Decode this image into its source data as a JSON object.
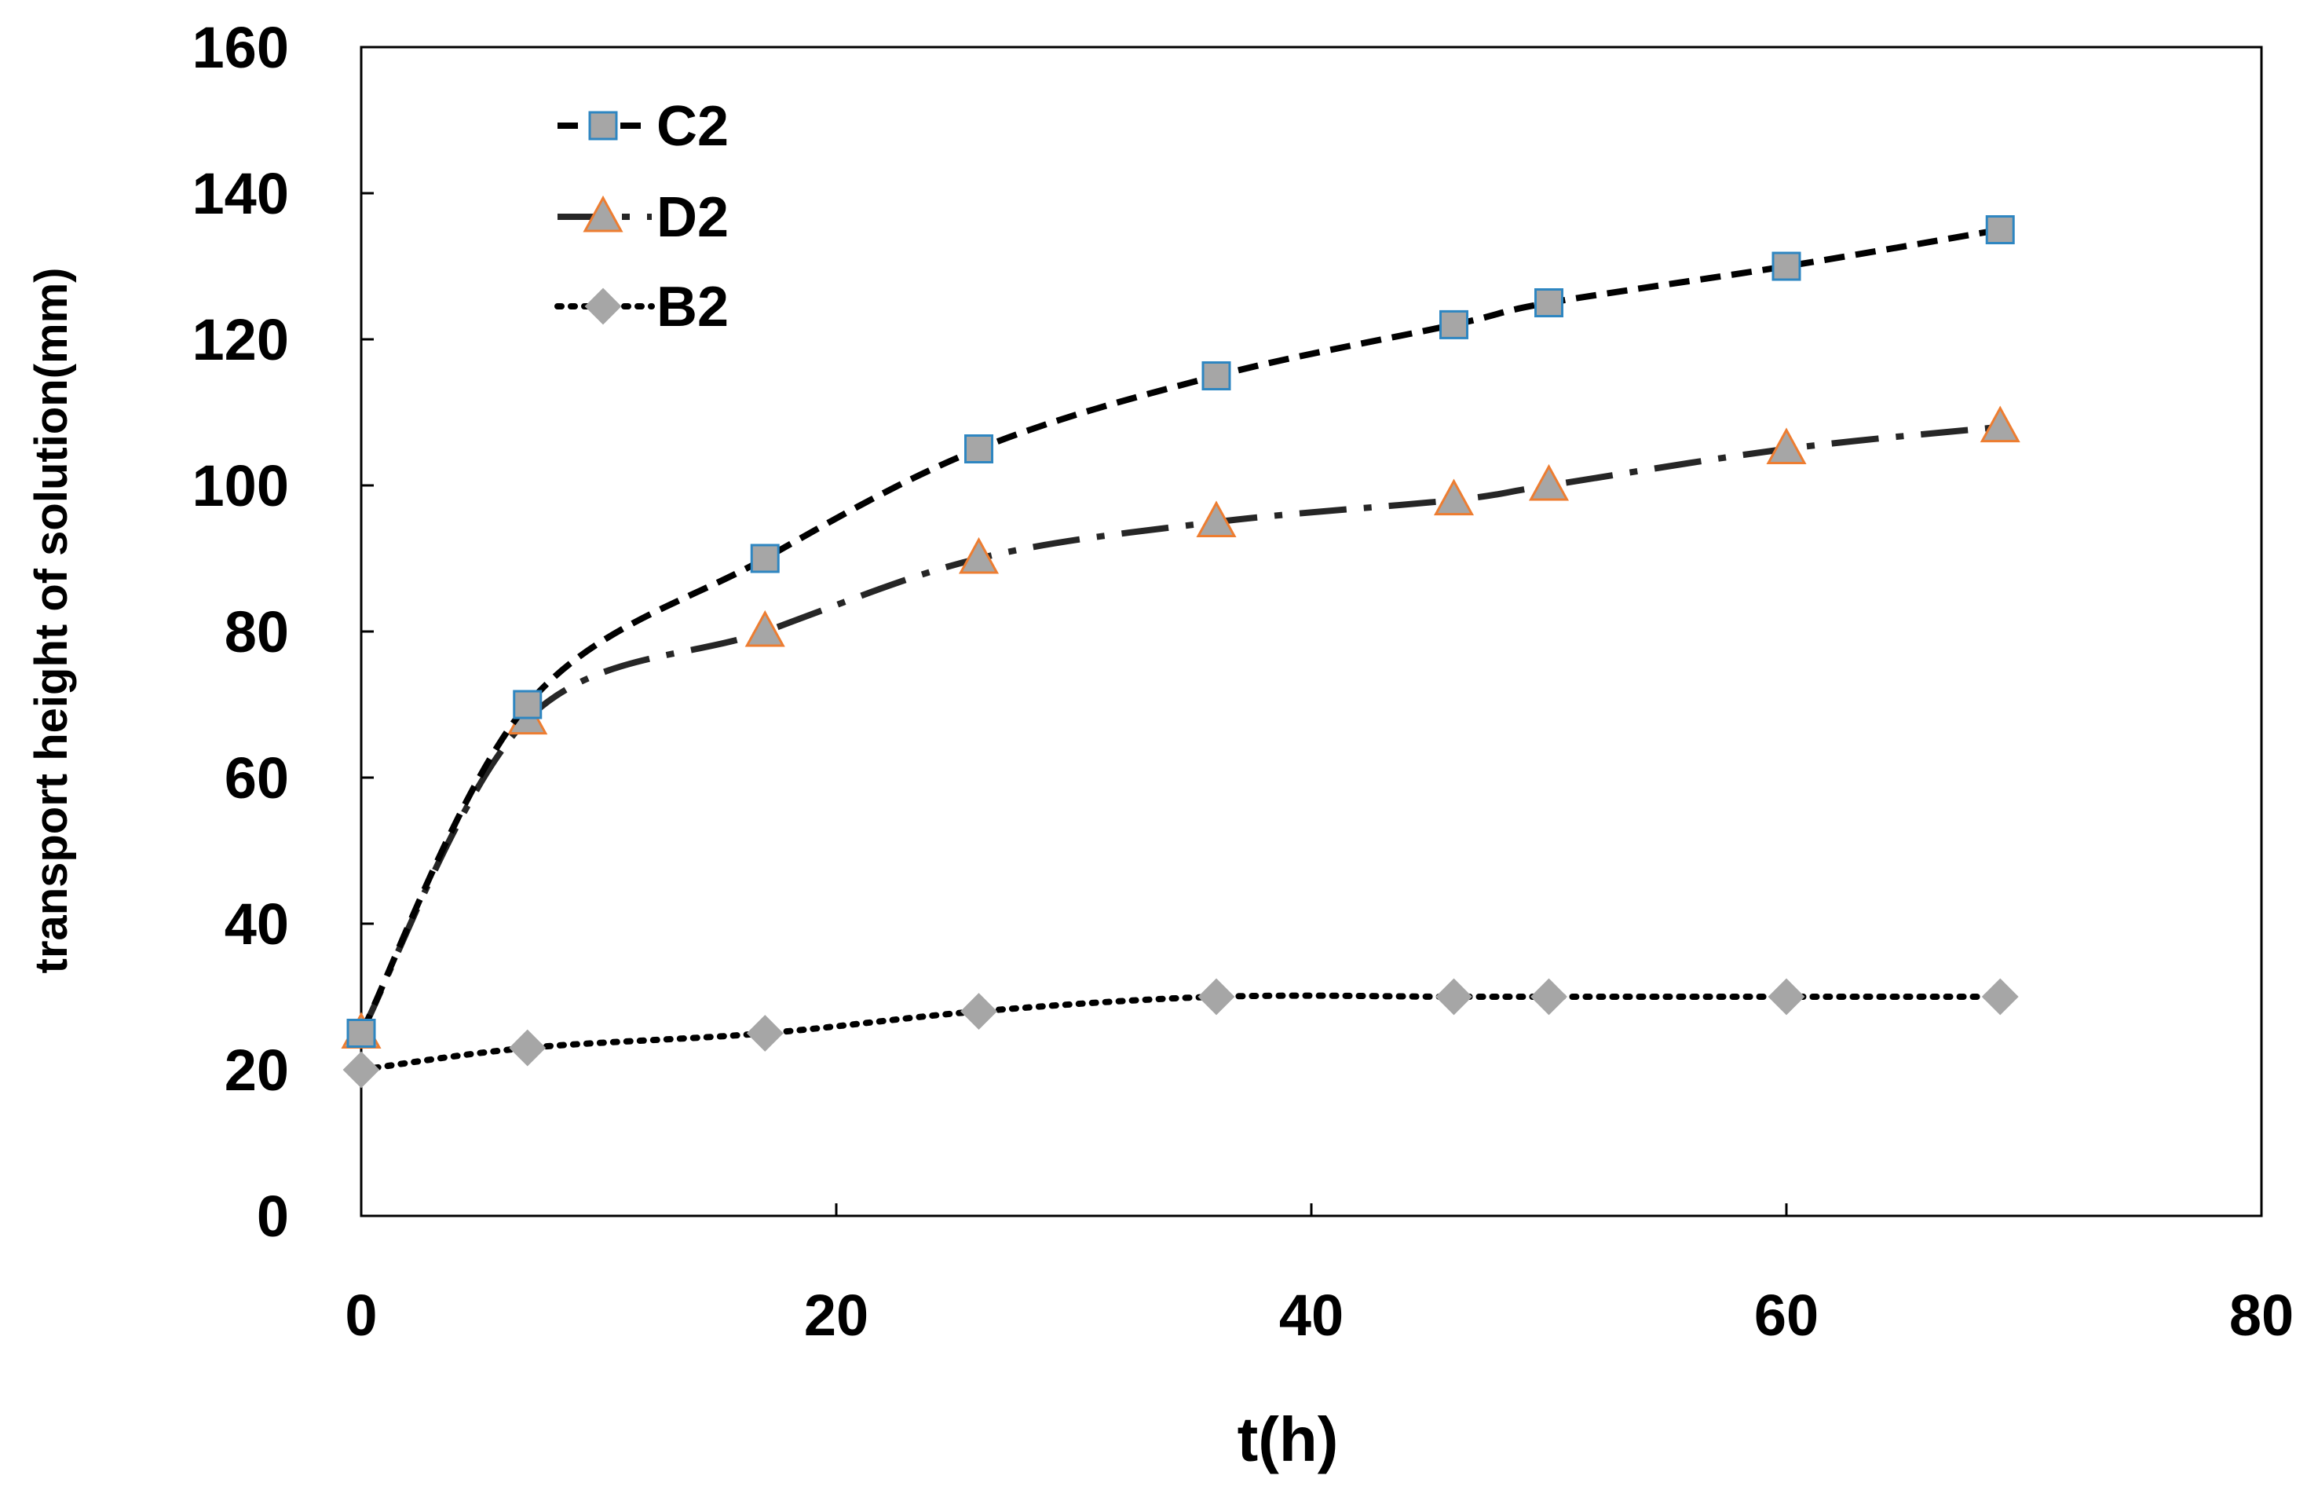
{
  "chart_data": {
    "type": "line",
    "title": "",
    "xlabel": "t(h)",
    "ylabel": "transport height of solution(mm)",
    "xlim": [
      0,
      80
    ],
    "ylim": [
      0,
      160
    ],
    "xticks": [
      0,
      20,
      40,
      60,
      80
    ],
    "yticks": [
      0,
      20,
      40,
      60,
      80,
      100,
      120,
      140,
      160
    ],
    "grid": false,
    "legend_position": "top-left",
    "series": [
      {
        "name": "C2",
        "marker": "square",
        "line_style": "dashed",
        "line_color": "#000000",
        "marker_fill": "#a6a6a6",
        "marker_edge": "#2e86c1",
        "x": [
          0,
          7,
          17,
          26,
          36,
          46,
          50,
          60,
          69
        ],
        "y": [
          25,
          70,
          90,
          105,
          115,
          122,
          125,
          130,
          135
        ]
      },
      {
        "name": "D2",
        "marker": "triangle",
        "line_style": "dash-dot",
        "line_color": "#262626",
        "marker_fill": "#a6a6a6",
        "marker_edge": "#ed7d31",
        "x": [
          0,
          7,
          17,
          26,
          36,
          46,
          50,
          60,
          69
        ],
        "y": [
          25,
          68,
          80,
          90,
          95,
          98,
          100,
          105,
          108
        ]
      },
      {
        "name": "B2",
        "marker": "diamond",
        "line_style": "dotted",
        "line_color": "#000000",
        "marker_fill": "#a6a6a6",
        "marker_edge": "#a6a6a6",
        "x": [
          0,
          7,
          17,
          26,
          36,
          46,
          50,
          60,
          69
        ],
        "y": [
          20,
          23,
          25,
          28,
          30,
          30,
          30,
          30,
          30
        ]
      }
    ]
  }
}
